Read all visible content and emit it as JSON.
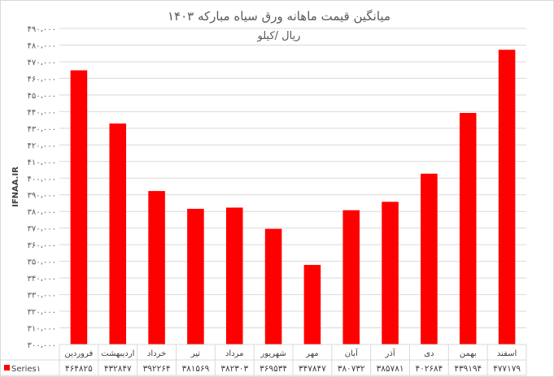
{
  "chart_data": {
    "type": "bar",
    "title": "میانگین قیمت ماهانه ورق سیاه مبارکه ۱۴۰۳",
    "subtitle": "ریال /کیلو",
    "watermark": "IFNAA.IR",
    "series_name": "Series۱",
    "color": "#ff0000",
    "ylim": [
      300000,
      490000
    ],
    "ytick_step": 10000,
    "ytick_labels": [
      "۳۰۰،۰۰۰",
      "۳۱۰،۰۰۰",
      "۳۲۰،۰۰۰",
      "۳۳۰،۰۰۰",
      "۳۴۰،۰۰۰",
      "۳۵۰،۰۰۰",
      "۳۶۰،۰۰۰",
      "۳۷۰،۰۰۰",
      "۳۸۰،۰۰۰",
      "۳۹۰،۰۰۰",
      "۴۰۰،۰۰۰",
      "۴۱۰،۰۰۰",
      "۴۲۰،۰۰۰",
      "۴۳۰،۰۰۰",
      "۴۴۰،۰۰۰",
      "۴۵۰،۰۰۰",
      "۴۶۰،۰۰۰",
      "۴۷۰،۰۰۰",
      "۴۸۰،۰۰۰",
      "۴۹۰،۰۰۰"
    ],
    "categories": [
      "فروردین",
      "اردیبهشت",
      "خرداد",
      "تیر",
      "مرداد",
      "شهریور",
      "مهر",
      "آبان",
      "آذر",
      "دی",
      "بهمن",
      "اسفند"
    ],
    "values": [
      464825,
      432847,
      392264,
      381569,
      382303,
      369534,
      347847,
      380732,
      385781,
      402684,
      439194,
      477179
    ],
    "value_labels": [
      "۴۶۴۸۲۵",
      "۴۳۲۸۴۷",
      "۳۹۲۲۶۴",
      "۳۸۱۵۶۹",
      "۳۸۲۳۰۳",
      "۳۶۹۵۳۴",
      "۳۴۷۸۴۷",
      "۳۸۰۷۳۲",
      "۳۸۵۷۸۱",
      "۴۰۲۶۸۴",
      "۴۳۹۱۹۴",
      "۴۷۷۱۷۹"
    ],
    "grid": true,
    "legend": "table-left"
  }
}
